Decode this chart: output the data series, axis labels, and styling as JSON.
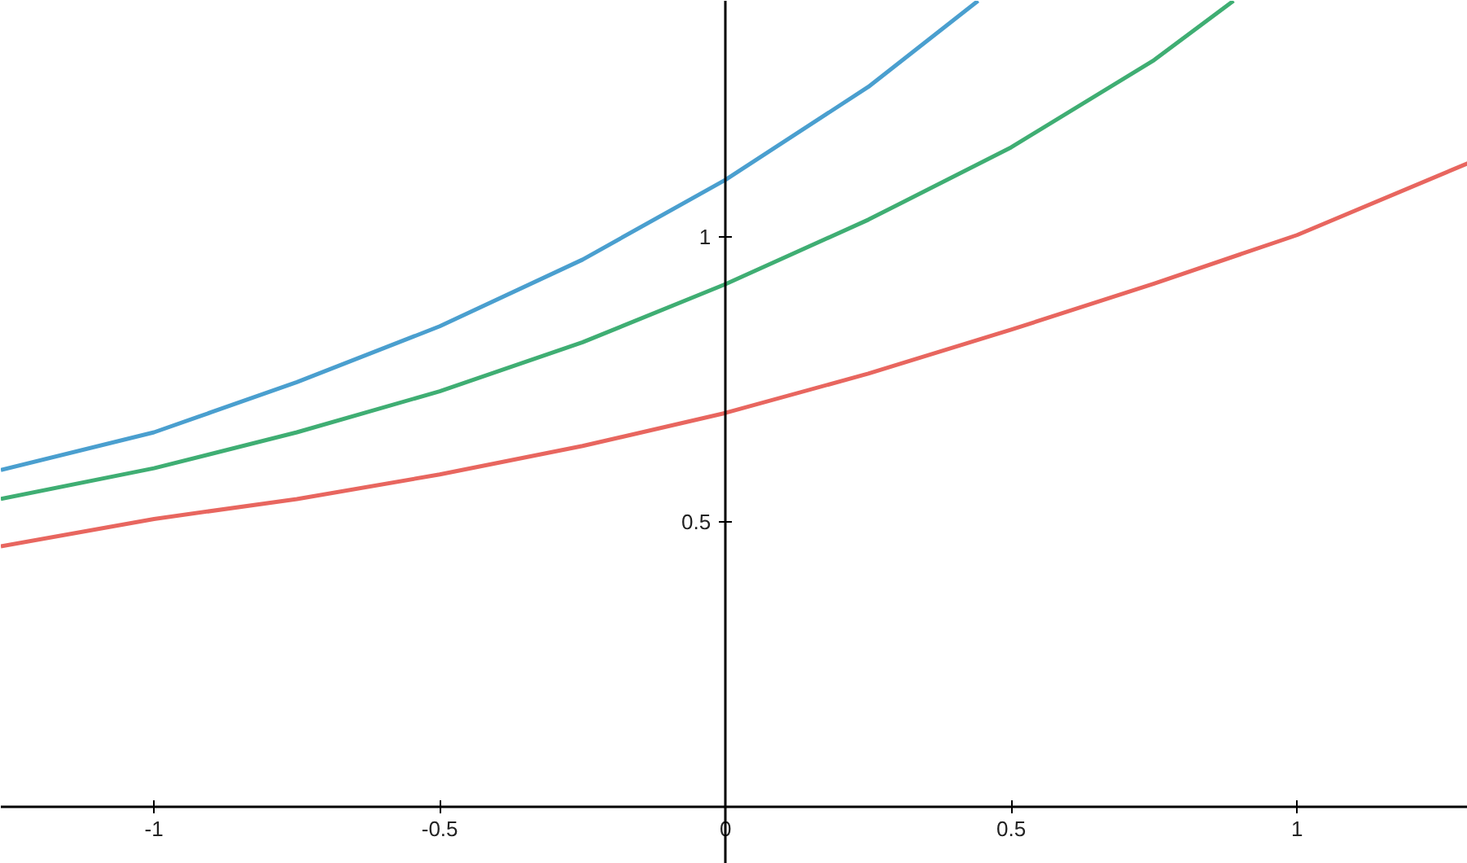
{
  "chart_data": {
    "type": "line",
    "xlim": [
      -1.268,
      1.299
    ],
    "ylim": [
      -0.1,
      1.414
    ],
    "xticks": [
      -1,
      -0.5,
      0,
      0.5,
      1
    ],
    "yticks": [
      0.5,
      1
    ],
    "grid": false,
    "line_style": "solid",
    "marker": "none",
    "series": [
      {
        "color": "#e8665f",
        "x": [
          -1.268,
          -1,
          -0.75,
          -0.5,
          -0.25,
          0,
          0.25,
          0.5,
          0.75,
          1,
          1.299
        ],
        "values": [
          0.457,
          0.505,
          0.54,
          0.583,
          0.633,
          0.691,
          0.76,
          0.837,
          0.918,
          1.003,
          1.129
        ]
      },
      {
        "color": "#3fae73",
        "x": [
          -1.268,
          -1,
          -0.75,
          -0.5,
          -0.25,
          0,
          0.25,
          0.5,
          0.75,
          0.889
        ],
        "values": [
          0.54,
          0.594,
          0.657,
          0.729,
          0.815,
          0.917,
          1.03,
          1.157,
          1.31,
          1.414
        ]
      },
      {
        "color": "#4a9fcf",
        "x": [
          -1.268,
          -1,
          -0.75,
          -0.5,
          -0.25,
          0,
          0.25,
          0.442
        ],
        "values": [
          0.591,
          0.657,
          0.745,
          0.843,
          0.96,
          1.1,
          1.263,
          1.414
        ]
      }
    ]
  }
}
